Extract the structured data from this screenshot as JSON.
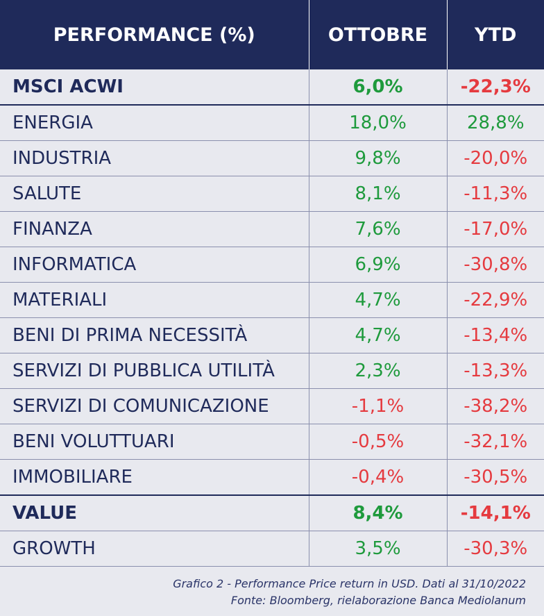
{
  "header": {
    "col1": "PERFORMANCE (%)",
    "col2": "OTTOBRE",
    "col3": "YTD"
  },
  "rows": [
    {
      "name": "MSCI ACWI",
      "ottobre": "6,0%",
      "ytd": "-22,3%",
      "ottobre_sign": "pos",
      "ytd_sign": "neg"
    },
    {
      "name": "ENERGIA",
      "ottobre": "18,0%",
      "ytd": "28,8%",
      "ottobre_sign": "pos",
      "ytd_sign": "pos"
    },
    {
      "name": "INDUSTRIA",
      "ottobre": "9,8%",
      "ytd": "-20,0%",
      "ottobre_sign": "pos",
      "ytd_sign": "neg"
    },
    {
      "name": "SALUTE",
      "ottobre": "8,1%",
      "ytd": "-11,3%",
      "ottobre_sign": "pos",
      "ytd_sign": "neg"
    },
    {
      "name": "FINANZA",
      "ottobre": "7,6%",
      "ytd": "-17,0%",
      "ottobre_sign": "pos",
      "ytd_sign": "neg"
    },
    {
      "name": "INFORMATICA",
      "ottobre": "6,9%",
      "ytd": "-30,8%",
      "ottobre_sign": "pos",
      "ytd_sign": "neg"
    },
    {
      "name": "MATERIALI",
      "ottobre": "4,7%",
      "ytd": "-22,9%",
      "ottobre_sign": "pos",
      "ytd_sign": "neg"
    },
    {
      "name": "BENI DI PRIMA NECESSITÀ",
      "ottobre": "4,7%",
      "ytd": "-13,4%",
      "ottobre_sign": "pos",
      "ytd_sign": "neg"
    },
    {
      "name": "SERVIZI DI PUBBLICA UTILITÀ",
      "ottobre": "2,3%",
      "ytd": "-13,3%",
      "ottobre_sign": "pos",
      "ytd_sign": "neg"
    },
    {
      "name": "SERVIZI DI COMUNICAZIONE",
      "ottobre": "-1,1%",
      "ytd": "-38,2%",
      "ottobre_sign": "neg",
      "ytd_sign": "neg"
    },
    {
      "name": "BENI VOLUTTUARI",
      "ottobre": "-0,5%",
      "ytd": "-32,1%",
      "ottobre_sign": "neg",
      "ytd_sign": "neg"
    },
    {
      "name": "IMMOBILIARE",
      "ottobre": "-0,4%",
      "ytd": "-30,5%",
      "ottobre_sign": "neg",
      "ytd_sign": "neg"
    },
    {
      "name": "VALUE",
      "ottobre": "8,4%",
      "ytd": "-14,1%",
      "ottobre_sign": "pos",
      "ytd_sign": "neg"
    },
    {
      "name": "GROWTH",
      "ottobre": "3,5%",
      "ytd": "-30,3%",
      "ottobre_sign": "pos",
      "ytd_sign": "neg"
    }
  ],
  "caption": {
    "line1": "Grafico 2 - Performance Price return in USD. Dati al 31/10/2022",
    "line2": "Fonte: Bloomberg, rielaborazione Banca Mediolanum"
  },
  "colors": {
    "header_bg": "#1f2a5a",
    "positive": "#1e9a3c",
    "negative": "#e53a3f",
    "background": "#e8e9ef"
  }
}
